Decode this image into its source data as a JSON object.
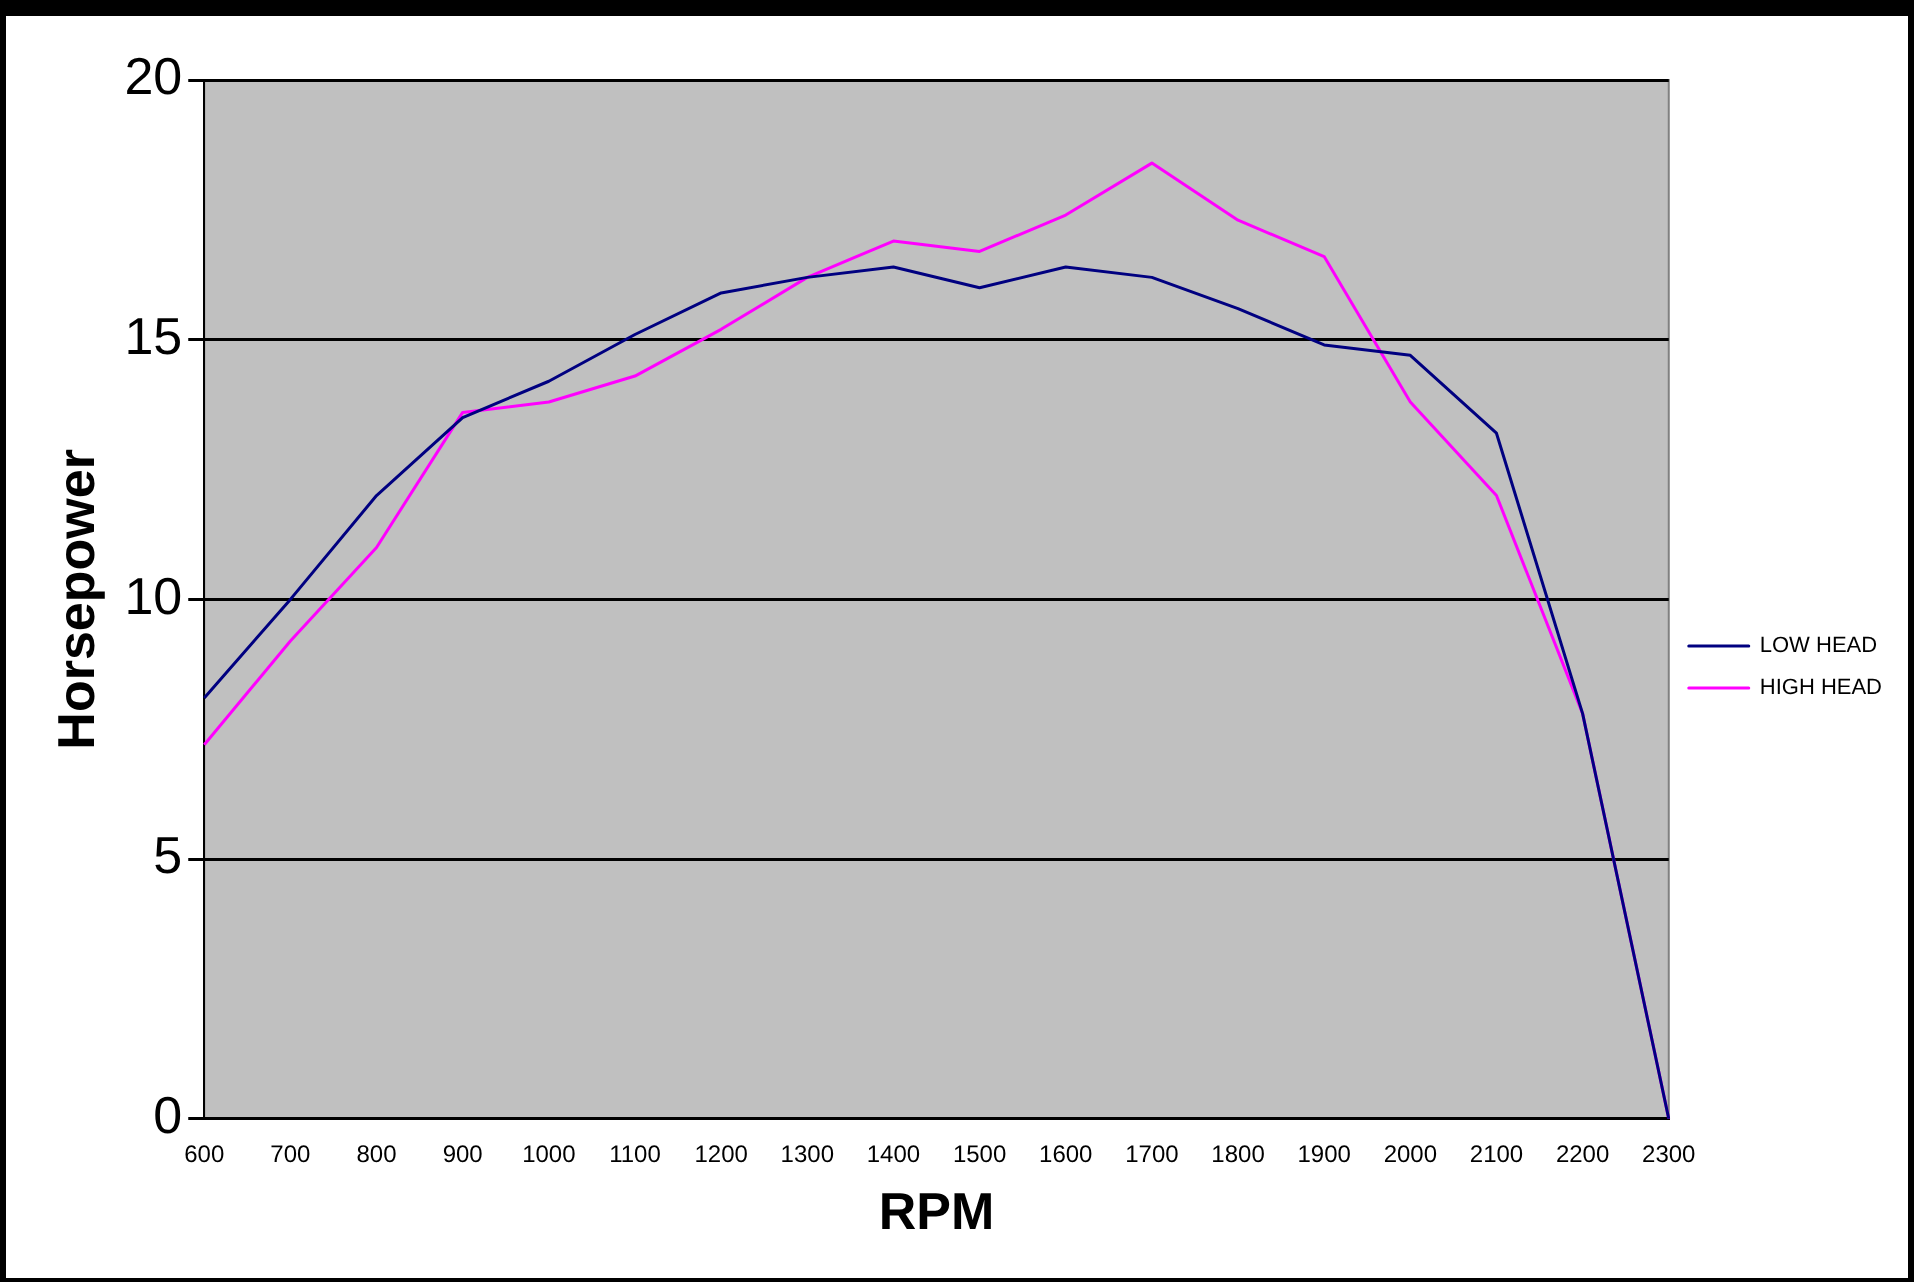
{
  "chart_data": {
    "type": "line",
    "xlabel": "RPM",
    "ylabel": "Horsepower",
    "categories": [
      "600",
      "700",
      "800",
      "900",
      "1000",
      "1100",
      "1200",
      "1300",
      "1400",
      "1500",
      "1600",
      "1700",
      "1800",
      "1900",
      "2000",
      "2100",
      "2200",
      "2300"
    ],
    "series": [
      {
        "name": "LOW HEAD",
        "color": "#000080",
        "values": [
          8.1,
          10.0,
          12.0,
          13.5,
          14.2,
          15.1,
          15.9,
          16.2,
          16.4,
          16.0,
          16.4,
          16.2,
          15.6,
          14.9,
          14.7,
          13.2,
          7.8,
          0
        ]
      },
      {
        "name": "HIGH HEAD",
        "color": "#ff00ff",
        "values": [
          7.2,
          9.2,
          11.0,
          13.6,
          13.8,
          14.3,
          15.2,
          16.2,
          16.9,
          16.7,
          17.4,
          18.4,
          17.3,
          16.6,
          13.8,
          12.0,
          7.8,
          0
        ]
      }
    ],
    "ylim": [
      0,
      20
    ],
    "yticks": [
      0,
      5,
      10,
      15,
      20
    ],
    "grid": "y",
    "legend": "right",
    "marker": "none",
    "line_style": "solid"
  }
}
